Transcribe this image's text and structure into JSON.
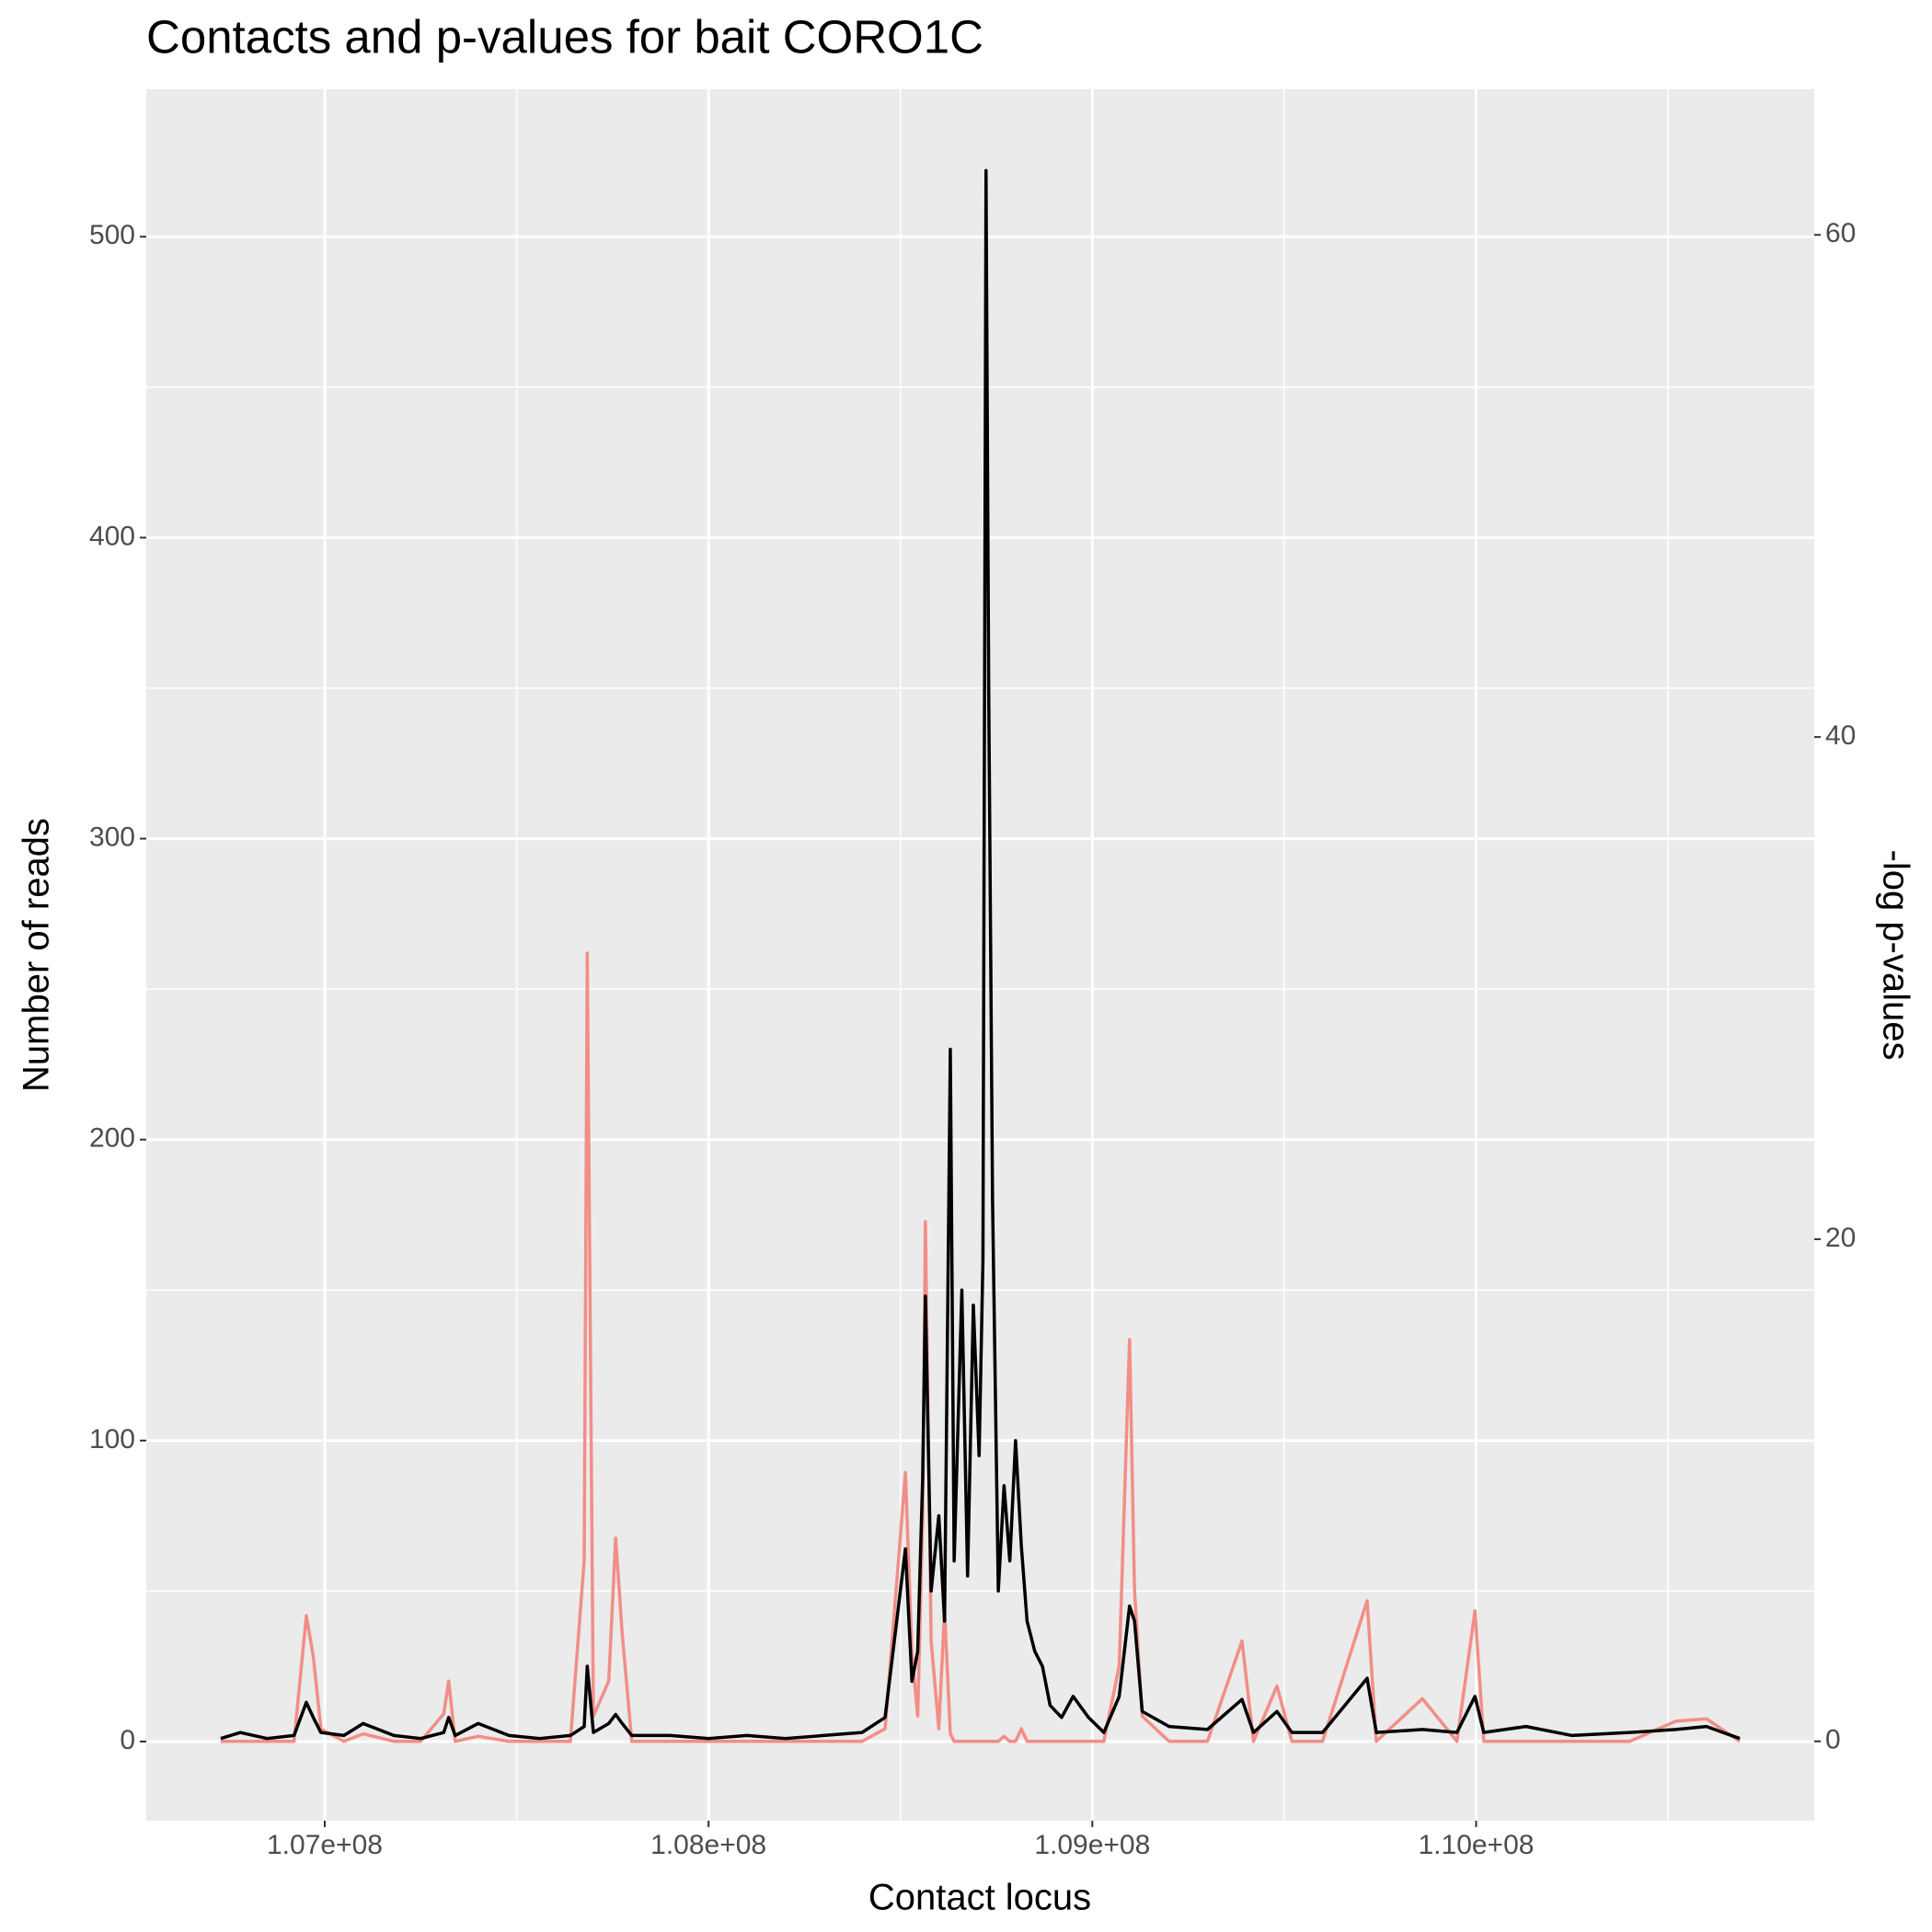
{
  "chart_data": {
    "type": "line",
    "title": "Contacts and p-values for bait CORO1C",
    "x_label": "Contact locus",
    "y_label": "Number of reads",
    "y2_label": "-log p-values",
    "x": [
      106729000,
      106780000,
      106850000,
      106920000,
      106952000,
      106970000,
      106990000,
      107050000,
      107100000,
      107180000,
      107250000,
      107310000,
      107323000,
      107340000,
      107400000,
      107480000,
      107560000,
      107640000,
      107676000,
      107684000,
      107700000,
      107740000,
      107758000,
      107775000,
      107800000,
      107900000,
      108000000,
      108100000,
      108200000,
      108300000,
      108400000,
      108460000,
      108513000,
      108530000,
      108545000,
      108558000,
      108565000,
      108580000,
      108600000,
      108615000,
      108630000,
      108640000,
      108660000,
      108675000,
      108690000,
      108705000,
      108715000,
      108723000,
      108730000,
      108740000,
      108755000,
      108770000,
      108785000,
      108800000,
      108815000,
      108830000,
      108850000,
      108870000,
      108890000,
      108920000,
      108950000,
      108990000,
      109030000,
      109070000,
      109097000,
      109110000,
      109130000,
      109200000,
      109300000,
      109390000,
      109420000,
      109481000,
      109520000,
      109600000,
      109716000,
      109740000,
      109860000,
      109950000,
      109997000,
      110020000,
      110130000,
      110250000,
      110400000,
      110520000,
      110600000,
      110687000
    ],
    "series": [
      {
        "name": "-log p-values",
        "color": "#f28e87",
        "axis": "y2",
        "values": [
          0,
          0,
          0,
          0,
          5.0,
          3.4,
          0.5,
          0,
          0.3,
          0,
          0,
          1.1,
          2.4,
          0,
          0.2,
          0,
          0,
          0,
          7.2,
          31.4,
          1,
          2.4,
          8.1,
          4.3,
          0,
          0,
          0,
          0,
          0,
          0,
          0,
          0.5,
          10.7,
          3.5,
          1,
          9,
          20.7,
          4,
          0.5,
          5.2,
          0.3,
          0,
          0,
          0,
          0,
          0,
          0,
          0,
          0,
          0,
          0,
          0.2,
          0,
          0,
          0.5,
          0,
          0,
          0,
          0,
          0,
          0,
          0,
          0,
          3,
          16.0,
          6,
          1,
          0,
          0,
          4.0,
          0,
          2.2,
          0,
          0,
          5.6,
          0,
          1.7,
          0,
          5.2,
          0,
          0,
          0,
          0,
          0.8,
          0.9,
          0
        ]
      },
      {
        "name": "Number of reads",
        "color": "#000000",
        "values": [
          1,
          3,
          1,
          2,
          13,
          8,
          3,
          2,
          6,
          2,
          1,
          3,
          8,
          2,
          6,
          2,
          1,
          2,
          5,
          25,
          3,
          6,
          9,
          6,
          2,
          2,
          1,
          2,
          1,
          2,
          3,
          8,
          64,
          20,
          30,
          88,
          148,
          50,
          75,
          40,
          230,
          60,
          150,
          55,
          145,
          95,
          160,
          522,
          350,
          180,
          50,
          85,
          60,
          100,
          65,
          40,
          30,
          25,
          12,
          8,
          15,
          8,
          3,
          15,
          45,
          40,
          10,
          5,
          4,
          14,
          3,
          10,
          3,
          3,
          21,
          3,
          4,
          3,
          15,
          3,
          5,
          2,
          3,
          4,
          5,
          1
        ]
      }
    ],
    "xlim": [
      106535000,
      110881000
    ],
    "xticks": [
      {
        "value": 107000000,
        "label": "1.07e+08"
      },
      {
        "value": 108000000,
        "label": "1.08e+08"
      },
      {
        "value": 109000000,
        "label": "1.09e+08"
      },
      {
        "value": 110000000,
        "label": "1.10e+08"
      }
    ],
    "ylim": [
      -26.3,
      549
    ],
    "yticks": [
      0,
      100,
      200,
      300,
      400,
      500
    ],
    "y2lim": [
      -3.16,
      65.8
    ],
    "y2ticks": [
      0,
      20,
      40,
      60
    ],
    "grid": true
  }
}
